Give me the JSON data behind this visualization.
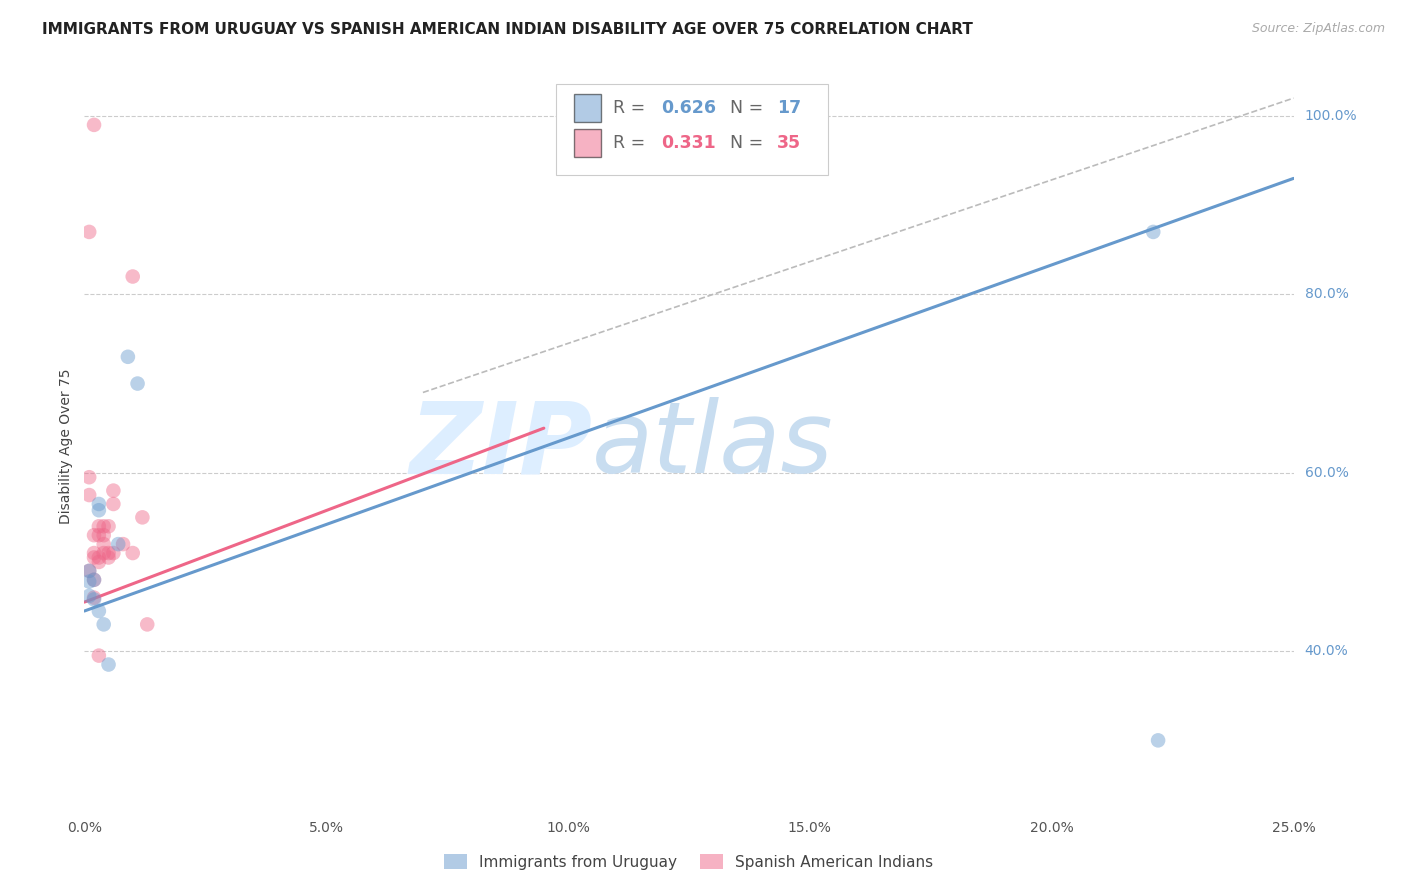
{
  "title": "IMMIGRANTS FROM URUGUAY VS SPANISH AMERICAN INDIAN DISABILITY AGE OVER 75 CORRELATION CHART",
  "source": "Source: ZipAtlas.com",
  "ylabel": "Disability Age Over 75",
  "xlim": [
    0.0,
    0.25
  ],
  "ylim": [
    0.22,
    1.04
  ],
  "xticks": [
    0.0,
    0.05,
    0.1,
    0.15,
    0.2,
    0.25
  ],
  "yticks": [
    0.4,
    0.6,
    0.8,
    1.0
  ],
  "ytick_labels": [
    "40.0%",
    "60.0%",
    "80.0%",
    "100.0%"
  ],
  "xtick_labels": [
    "0.0%",
    "5.0%",
    "10.0%",
    "15.0%",
    "20.0%",
    "25.0%"
  ],
  "legend_entries": [
    {
      "label_r": "R = ",
      "label_rv": "0.626",
      "label_n": "  N = ",
      "label_nv": "17",
      "color": "#6699cc"
    },
    {
      "label_r": "R = ",
      "label_rv": "0.331",
      "label_n": "  N = ",
      "label_nv": "35",
      "color": "#ee6688"
    }
  ],
  "blue_scatter_x": [
    0.001,
    0.001,
    0.001,
    0.002,
    0.002,
    0.003,
    0.003,
    0.003,
    0.004,
    0.005,
    0.007,
    0.009,
    0.011,
    0.221,
    0.222
  ],
  "blue_scatter_y": [
    0.49,
    0.478,
    0.462,
    0.48,
    0.458,
    0.565,
    0.558,
    0.445,
    0.43,
    0.385,
    0.52,
    0.73,
    0.7,
    0.87,
    0.3
  ],
  "pink_scatter_x": [
    0.001,
    0.001,
    0.001,
    0.001,
    0.002,
    0.002,
    0.002,
    0.002,
    0.002,
    0.003,
    0.003,
    0.003,
    0.003,
    0.003,
    0.004,
    0.004,
    0.004,
    0.004,
    0.005,
    0.005,
    0.005,
    0.006,
    0.006,
    0.006,
    0.008,
    0.01,
    0.01,
    0.012,
    0.013,
    0.002
  ],
  "pink_scatter_y": [
    0.87,
    0.595,
    0.575,
    0.49,
    0.53,
    0.51,
    0.505,
    0.48,
    0.46,
    0.54,
    0.53,
    0.505,
    0.5,
    0.395,
    0.54,
    0.53,
    0.52,
    0.51,
    0.54,
    0.51,
    0.505,
    0.58,
    0.565,
    0.51,
    0.52,
    0.82,
    0.51,
    0.55,
    0.43,
    0.99
  ],
  "blue_line_x": [
    0.0,
    0.25
  ],
  "blue_line_y": [
    0.445,
    0.93
  ],
  "pink_line_x": [
    0.0,
    0.095
  ],
  "pink_line_y": [
    0.455,
    0.65
  ],
  "diag_line_x": [
    0.07,
    0.25
  ],
  "diag_line_y": [
    0.69,
    1.02
  ],
  "blue_color": "#6699cc",
  "pink_color": "#ee6688",
  "diag_color": "#bbbbbb",
  "marker_size": 110,
  "marker_alpha": 0.45,
  "line_width": 2.2,
  "bg_color": "#ffffff",
  "grid_color": "#cccccc",
  "watermark_zip": "ZIP",
  "watermark_atlas": "atlas",
  "watermark_color": "#ddeeff",
  "title_fontsize": 11,
  "axis_label_fontsize": 10,
  "tick_fontsize": 10,
  "source_fontsize": 9
}
